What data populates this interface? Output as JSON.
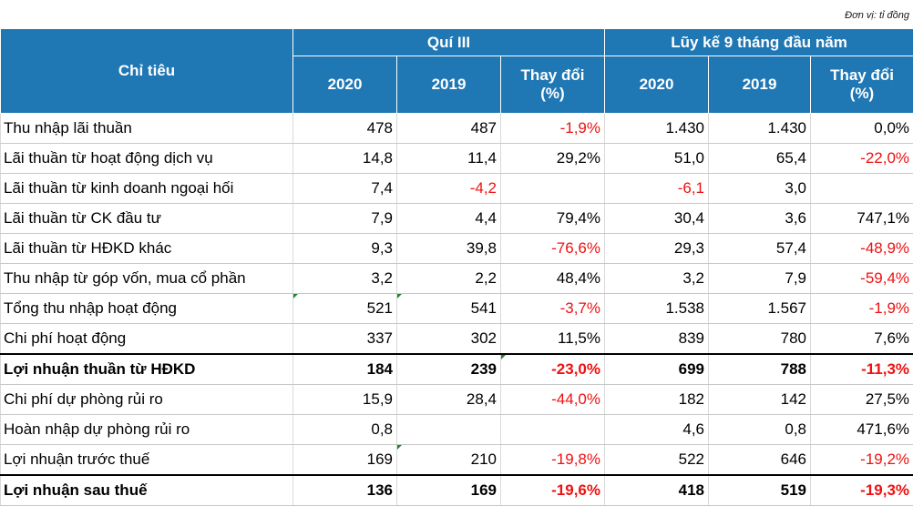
{
  "unit_note": "Đơn vị: tỉ đồng",
  "header": {
    "indicator": "Chỉ tiêu",
    "group_q3": "Quí III",
    "group_ytd": "Lũy kế 9 tháng đầu năm",
    "y2020": "2020",
    "y2019": "2019",
    "change_line1": "Thay đổi",
    "change_line2": "(%)"
  },
  "rows": [
    {
      "label": "Thu nhập lãi thuần",
      "q3_2020": "478",
      "q3_2019": "487",
      "q3_change": "-1,9%",
      "ytd_2020": "1.430",
      "ytd_2019": "1.430",
      "ytd_change": "0,0%"
    },
    {
      "label": "Lãi thuần từ hoạt động dịch vụ",
      "q3_2020": "14,8",
      "q3_2019": "11,4",
      "q3_change": "29,2%",
      "ytd_2020": "51,0",
      "ytd_2019": "65,4",
      "ytd_change": "-22,0%"
    },
    {
      "label": "Lãi thuần từ kinh doanh ngoại hối",
      "q3_2020": "7,4",
      "q3_2019": "-4,2",
      "q3_change": "",
      "ytd_2020": "-6,1",
      "ytd_2019": "3,0",
      "ytd_change": ""
    },
    {
      "label": "Lãi thuần từ CK đầu tư",
      "q3_2020": "7,9",
      "q3_2019": "4,4",
      "q3_change": "79,4%",
      "ytd_2020": "30,4",
      "ytd_2019": "3,6",
      "ytd_change": "747,1%"
    },
    {
      "label": "Lãi thuần từ HĐKD khác",
      "q3_2020": "9,3",
      "q3_2019": "39,8",
      "q3_change": "-76,6%",
      "ytd_2020": "29,3",
      "ytd_2019": "57,4",
      "ytd_change": "-48,9%"
    },
    {
      "label": "Thu nhập từ góp vốn, mua cổ phần",
      "q3_2020": "3,2",
      "q3_2019": "2,2",
      "q3_change": "48,4%",
      "ytd_2020": "3,2",
      "ytd_2019": "7,9",
      "ytd_change": "-59,4%"
    },
    {
      "label": "Tổng thu nhập hoạt động",
      "q3_2020": "521",
      "q3_2019": "541",
      "q3_change": "-3,7%",
      "ytd_2020": "1.538",
      "ytd_2019": "1.567",
      "ytd_change": "-1,9%"
    },
    {
      "label": "Chi phí hoạt động",
      "q3_2020": "337",
      "q3_2019": "302",
      "q3_change": "11,5%",
      "ytd_2020": "839",
      "ytd_2019": "780",
      "ytd_change": "7,6%"
    },
    {
      "label": "Lợi nhuận thuần từ HĐKD",
      "q3_2020": "184",
      "q3_2019": "239",
      "q3_change": "-23,0%",
      "ytd_2020": "699",
      "ytd_2019": "788",
      "ytd_change": "-11,3%"
    },
    {
      "label": "Chi phí dự phòng rủi ro",
      "q3_2020": "15,9",
      "q3_2019": "28,4",
      "q3_change": "-44,0%",
      "ytd_2020": "182",
      "ytd_2019": "142",
      "ytd_change": "27,5%"
    },
    {
      "label": "Hoàn nhập dự phòng rủi ro",
      "q3_2020": "0,8",
      "q3_2019": "",
      "q3_change": "",
      "ytd_2020": "4,6",
      "ytd_2019": "0,8",
      "ytd_change": "471,6%"
    },
    {
      "label": "Lợi nhuận trước thuế",
      "q3_2020": "169",
      "q3_2019": "210",
      "q3_change": "-19,8%",
      "ytd_2020": "522",
      "ytd_2019": "646",
      "ytd_change": "-19,2%"
    },
    {
      "label": "Lợi nhuận sau thuế",
      "q3_2020": "136",
      "q3_2019": "169",
      "q3_change": "-19,6%",
      "ytd_2020": "418",
      "ytd_2019": "519",
      "ytd_change": "-19,3%"
    }
  ],
  "colors": {
    "header_bg": "#1f77b4",
    "header_text": "#ffffff",
    "negative_text": "#ee1111",
    "cell_marker": "#1c8a2c"
  }
}
